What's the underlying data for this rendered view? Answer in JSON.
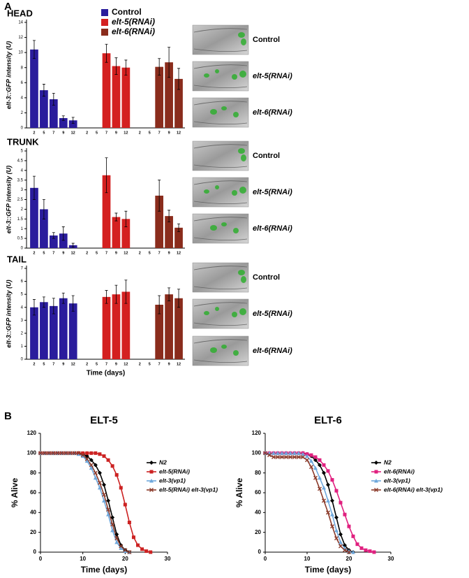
{
  "panel_labels": [
    "A",
    "B"
  ],
  "chart_data": [
    {
      "type": "bar",
      "title": "HEAD",
      "y_label": "elt-3::GFP intensity (U)",
      "categories": [
        "2",
        "5",
        "7",
        "9",
        "12"
      ],
      "ylim": [
        0,
        14
      ],
      "yticks": [
        0,
        2,
        4,
        6,
        8,
        10,
        12,
        14
      ],
      "legend": "top",
      "series": [
        {
          "name": "Control",
          "color": "#2a1c9c",
          "values": [
            10.4,
            5.0,
            3.8,
            1.3,
            1.0
          ],
          "errors": [
            1.2,
            0.8,
            0.8,
            0.3,
            0.4
          ]
        },
        {
          "name": "elt-5(RNAi)",
          "color": "#d42020",
          "values": [
            null,
            null,
            9.9,
            8.2,
            8.0
          ],
          "errors": [
            null,
            null,
            1.2,
            1.1,
            1.0
          ]
        },
        {
          "name": "elt-6(RNAi)",
          "color": "#8a2c1c",
          "values": [
            null,
            null,
            8.1,
            8.7,
            6.5
          ],
          "errors": [
            null,
            null,
            1.1,
            2.0,
            1.4
          ]
        }
      ],
      "image_labels": [
        "Control",
        "elt-5(RNAi)",
        "elt-6(RNAi)"
      ]
    },
    {
      "type": "bar",
      "title": "TRUNK",
      "y_label": "elt-3::GFP intensity (U)",
      "categories": [
        "2",
        "5",
        "7",
        "9",
        "12"
      ],
      "ylim": [
        0,
        5
      ],
      "yticks": [
        0,
        0.5,
        1,
        1.5,
        2,
        2.5,
        3,
        3.5,
        4,
        4.5,
        5
      ],
      "series": [
        {
          "name": "Control",
          "color": "#2a1c9c",
          "values": [
            3.1,
            2.0,
            0.65,
            0.75,
            0.15
          ],
          "errors": [
            0.6,
            0.5,
            0.15,
            0.35,
            0.1
          ]
        },
        {
          "name": "elt-5(RNAi)",
          "color": "#d42020",
          "values": [
            null,
            null,
            3.75,
            1.6,
            1.5
          ],
          "errors": [
            null,
            null,
            0.9,
            0.2,
            0.4
          ]
        },
        {
          "name": "elt-6(RNAi)",
          "color": "#8a2c1c",
          "values": [
            null,
            null,
            2.7,
            1.65,
            1.05
          ],
          "errors": [
            null,
            null,
            0.8,
            0.3,
            0.2
          ]
        }
      ],
      "image_labels": [
        "Control",
        "elt-5(RNAi)",
        "elt-6(RNAi)"
      ]
    },
    {
      "type": "bar",
      "title": "TAIL",
      "y_label": "elt-3::GFP intensity (U)",
      "x_label": "Time (days)",
      "categories": [
        "2",
        "5",
        "7",
        "9",
        "12"
      ],
      "ylim": [
        0,
        7
      ],
      "yticks": [
        0,
        1,
        2,
        3,
        4,
        5,
        6,
        7
      ],
      "series": [
        {
          "name": "Control",
          "color": "#2a1c9c",
          "values": [
            4.0,
            4.4,
            4.1,
            4.7,
            4.3
          ],
          "errors": [
            0.6,
            0.4,
            0.6,
            0.4,
            0.6
          ]
        },
        {
          "name": "elt-5(RNAi)",
          "color": "#d42020",
          "values": [
            null,
            null,
            4.8,
            5.0,
            5.2
          ],
          "errors": [
            null,
            null,
            0.5,
            0.7,
            0.9
          ]
        },
        {
          "name": "elt-6(RNAi)",
          "color": "#8a2c1c",
          "values": [
            null,
            null,
            4.2,
            5.0,
            4.7
          ],
          "errors": [
            null,
            null,
            0.7,
            0.5,
            0.7
          ]
        }
      ],
      "image_labels": [
        "Control",
        "elt-5(RNAi)",
        "elt-6(RNAi)"
      ]
    },
    {
      "type": "line",
      "title": "ELT-5",
      "x_label": "Time (days)",
      "y_label": "% Alive",
      "xlim": [
        0,
        30
      ],
      "xticks": [
        0,
        10,
        20,
        30
      ],
      "ylim": [
        0,
        120
      ],
      "yticks": [
        0,
        20,
        40,
        60,
        80,
        100,
        120
      ],
      "legend": "right",
      "x": [
        0,
        1,
        2,
        3,
        4,
        5,
        6,
        7,
        8,
        9,
        10,
        11,
        12,
        13,
        14,
        15,
        16,
        17,
        18,
        19,
        20,
        21,
        22,
        23,
        24,
        25,
        26
      ],
      "series": [
        {
          "name": "N2",
          "color": "#000000",
          "marker": "diamond",
          "values": [
            100,
            100,
            100,
            100,
            100,
            100,
            100,
            100,
            100,
            100,
            99,
            97,
            93,
            88,
            80,
            68,
            52,
            35,
            18,
            7,
            2,
            0,
            null,
            null,
            null,
            null,
            null
          ]
        },
        {
          "name": "elt-5(RNAi)",
          "color": "#cc2222",
          "marker": "square",
          "values": [
            100,
            100,
            100,
            100,
            100,
            100,
            100,
            100,
            100,
            100,
            100,
            100,
            100,
            100,
            99,
            97,
            93,
            87,
            78,
            65,
            48,
            30,
            15,
            7,
            3,
            1,
            0
          ]
        },
        {
          "name": "elt-3(vp1)",
          "color": "#6fa8dc",
          "marker": "triangle",
          "values": [
            100,
            100,
            100,
            100,
            100,
            100,
            100,
            100,
            100,
            99,
            97,
            92,
            85,
            75,
            65,
            52,
            38,
            22,
            10,
            4,
            1,
            0,
            null,
            null,
            null,
            null,
            null
          ]
        },
        {
          "name": "elt-5(RNAi) elt-3(vp1)",
          "color": "#8b3a2a",
          "marker": "cross",
          "values": [
            100,
            100,
            100,
            100,
            100,
            100,
            100,
            100,
            100,
            100,
            98,
            94,
            88,
            80,
            70,
            58,
            43,
            28,
            14,
            6,
            2,
            0,
            null,
            null,
            null,
            null,
            null
          ]
        }
      ]
    },
    {
      "type": "line",
      "title": "ELT-6",
      "x_label": "Time (days)",
      "y_label": "% Alive",
      "xlim": [
        0,
        30
      ],
      "xticks": [
        0,
        10,
        20,
        30
      ],
      "ylim": [
        0,
        120
      ],
      "yticks": [
        0,
        20,
        40,
        60,
        80,
        100,
        120
      ],
      "legend": "right",
      "x": [
        0,
        1,
        2,
        3,
        4,
        5,
        6,
        7,
        8,
        9,
        10,
        11,
        12,
        13,
        14,
        15,
        16,
        17,
        18,
        19,
        20,
        21,
        22,
        23,
        24,
        25,
        26
      ],
      "series": [
        {
          "name": "N2",
          "color": "#000000",
          "marker": "diamond",
          "values": [
            100,
            100,
            100,
            100,
            100,
            100,
            100,
            100,
            100,
            100,
            99,
            97,
            93,
            88,
            80,
            68,
            52,
            35,
            18,
            7,
            2,
            0,
            null,
            null,
            null,
            null,
            null
          ]
        },
        {
          "name": "elt-6(RNAi)",
          "color": "#e0207f",
          "marker": "square",
          "values": [
            100,
            100,
            100,
            100,
            100,
            100,
            100,
            100,
            100,
            100,
            99,
            98,
            96,
            93,
            88,
            82,
            73,
            62,
            50,
            38,
            26,
            16,
            8,
            4,
            2,
            1,
            0
          ]
        },
        {
          "name": "elt-3(vp1)",
          "color": "#6fa8dc",
          "marker": "triangle",
          "values": [
            100,
            100,
            100,
            100,
            100,
            100,
            100,
            100,
            100,
            99,
            97,
            92,
            85,
            75,
            65,
            52,
            38,
            22,
            10,
            4,
            1,
            0,
            null,
            null,
            null,
            null,
            null
          ]
        },
        {
          "name": "elt-6(RNAi) elt-3(vp1)",
          "color": "#8b3a2a",
          "marker": "cross",
          "values": [
            100,
            98,
            96,
            96,
            96,
            96,
            96,
            96,
            96,
            96,
            93,
            86,
            75,
            64,
            52,
            40,
            26,
            14,
            6,
            2,
            0,
            null,
            null,
            null,
            null,
            null,
            null
          ]
        }
      ]
    }
  ]
}
